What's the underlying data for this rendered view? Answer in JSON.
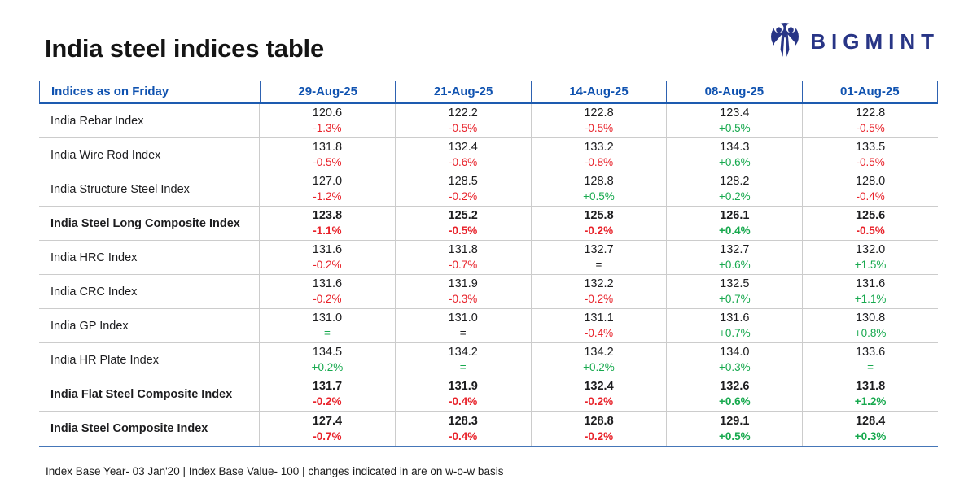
{
  "page": {
    "logo_text": "BIGMINT"
  },
  "colors": {
    "header_blue": "#0f52b0",
    "table_border_blue": "#1d5bb0",
    "negative_red": "#e8222a",
    "positive_green": "#17a94e",
    "neutral_dark": "#1d1d1f",
    "row_divider": "#cccccc",
    "logo_navy": "#283586"
  },
  "chart_data": {
    "type": "table",
    "title": "India steel indices table",
    "footnote": "Index Base Year- 03 Jan'20 | Index Base Value- 100 | changes indicated in are on w-o-w basis",
    "columns": [
      "Indices as on Friday",
      "29-Aug-25",
      "21-Aug-25",
      "14-Aug-25",
      "08-Aug-25",
      "01-Aug-25"
    ],
    "rows": [
      {
        "label": "India Rebar Index",
        "bold": false,
        "cells": [
          {
            "value": "120.6",
            "change": "-1.3%",
            "trend": "down"
          },
          {
            "value": "122.2",
            "change": "-0.5%",
            "trend": "down"
          },
          {
            "value": "122.8",
            "change": "-0.5%",
            "trend": "down"
          },
          {
            "value": "123.4",
            "change": "+0.5%",
            "trend": "up"
          },
          {
            "value": "122.8",
            "change": "-0.5%",
            "trend": "down"
          }
        ]
      },
      {
        "label": "India Wire Rod Index",
        "bold": false,
        "cells": [
          {
            "value": "131.8",
            "change": "-0.5%",
            "trend": "down"
          },
          {
            "value": "132.4",
            "change": "-0.6%",
            "trend": "down"
          },
          {
            "value": "133.2",
            "change": "-0.8%",
            "trend": "down"
          },
          {
            "value": "134.3",
            "change": "+0.6%",
            "trend": "up"
          },
          {
            "value": "133.5",
            "change": "-0.5%",
            "trend": "down"
          }
        ]
      },
      {
        "label": "India Structure Steel Index",
        "bold": false,
        "cells": [
          {
            "value": "127.0",
            "change": "-1.2%",
            "trend": "down"
          },
          {
            "value": "128.5",
            "change": "-0.2%",
            "trend": "down"
          },
          {
            "value": "128.8",
            "change": "+0.5%",
            "trend": "up"
          },
          {
            "value": "128.2",
            "change": "+0.2%",
            "trend": "up"
          },
          {
            "value": "128.0",
            "change": "-0.4%",
            "trend": "down"
          }
        ]
      },
      {
        "label": "India Steel Long Composite Index",
        "bold": true,
        "cells": [
          {
            "value": "123.8",
            "change": "-1.1%",
            "trend": "down"
          },
          {
            "value": "125.2",
            "change": "-0.5%",
            "trend": "down"
          },
          {
            "value": "125.8",
            "change": "-0.2%",
            "trend": "down"
          },
          {
            "value": "126.1",
            "change": "+0.4%",
            "trend": "up"
          },
          {
            "value": "125.6",
            "change": "-0.5%",
            "trend": "down"
          }
        ]
      },
      {
        "label": "India HRC Index",
        "bold": false,
        "cells": [
          {
            "value": "131.6",
            "change": "-0.2%",
            "trend": "down"
          },
          {
            "value": "131.8",
            "change": "-0.7%",
            "trend": "down"
          },
          {
            "value": "132.7",
            "change": "=",
            "trend": "flat-dark"
          },
          {
            "value": "132.7",
            "change": "+0.6%",
            "trend": "up"
          },
          {
            "value": "132.0",
            "change": "+1.5%",
            "trend": "up"
          }
        ]
      },
      {
        "label": "India CRC Index",
        "bold": false,
        "cells": [
          {
            "value": "131.6",
            "change": "-0.2%",
            "trend": "down"
          },
          {
            "value": "131.9",
            "change": "-0.3%",
            "trend": "down"
          },
          {
            "value": "132.2",
            "change": "-0.2%",
            "trend": "down"
          },
          {
            "value": "132.5",
            "change": "+0.7%",
            "trend": "up"
          },
          {
            "value": "131.6",
            "change": "+1.1%",
            "trend": "up"
          }
        ]
      },
      {
        "label": "India GP Index",
        "bold": false,
        "cells": [
          {
            "value": "131.0",
            "change": "=",
            "trend": "flat"
          },
          {
            "value": "131.0",
            "change": "=",
            "trend": "flat-dark"
          },
          {
            "value": "131.1",
            "change": "-0.4%",
            "trend": "down"
          },
          {
            "value": "131.6",
            "change": "+0.7%",
            "trend": "up"
          },
          {
            "value": "130.8",
            "change": "+0.8%",
            "trend": "up"
          }
        ]
      },
      {
        "label": "India HR Plate Index",
        "bold": false,
        "cells": [
          {
            "value": "134.5",
            "change": "+0.2%",
            "trend": "up"
          },
          {
            "value": "134.2",
            "change": "=",
            "trend": "flat"
          },
          {
            "value": "134.2",
            "change": "+0.2%",
            "trend": "up"
          },
          {
            "value": "134.0",
            "change": "+0.3%",
            "trend": "up"
          },
          {
            "value": "133.6",
            "change": "=",
            "trend": "flat"
          }
        ]
      },
      {
        "label": "India Flat Steel Composite Index",
        "bold": true,
        "cells": [
          {
            "value": "131.7",
            "change": "-0.2%",
            "trend": "down"
          },
          {
            "value": "131.9",
            "change": "-0.4%",
            "trend": "down"
          },
          {
            "value": "132.4",
            "change": "-0.2%",
            "trend": "down"
          },
          {
            "value": "132.6",
            "change": "+0.6%",
            "trend": "up"
          },
          {
            "value": "131.8",
            "change": "+1.2%",
            "trend": "up"
          }
        ]
      },
      {
        "label": "India Steel Composite Index",
        "bold": true,
        "cells": [
          {
            "value": "127.4",
            "change": "-0.7%",
            "trend": "down"
          },
          {
            "value": "128.3",
            "change": "-0.4%",
            "trend": "down"
          },
          {
            "value": "128.8",
            "change": "-0.2%",
            "trend": "down"
          },
          {
            "value": "129.1",
            "change": "+0.5%",
            "trend": "up"
          },
          {
            "value": "128.4",
            "change": "+0.3%",
            "trend": "up"
          }
        ]
      }
    ]
  }
}
